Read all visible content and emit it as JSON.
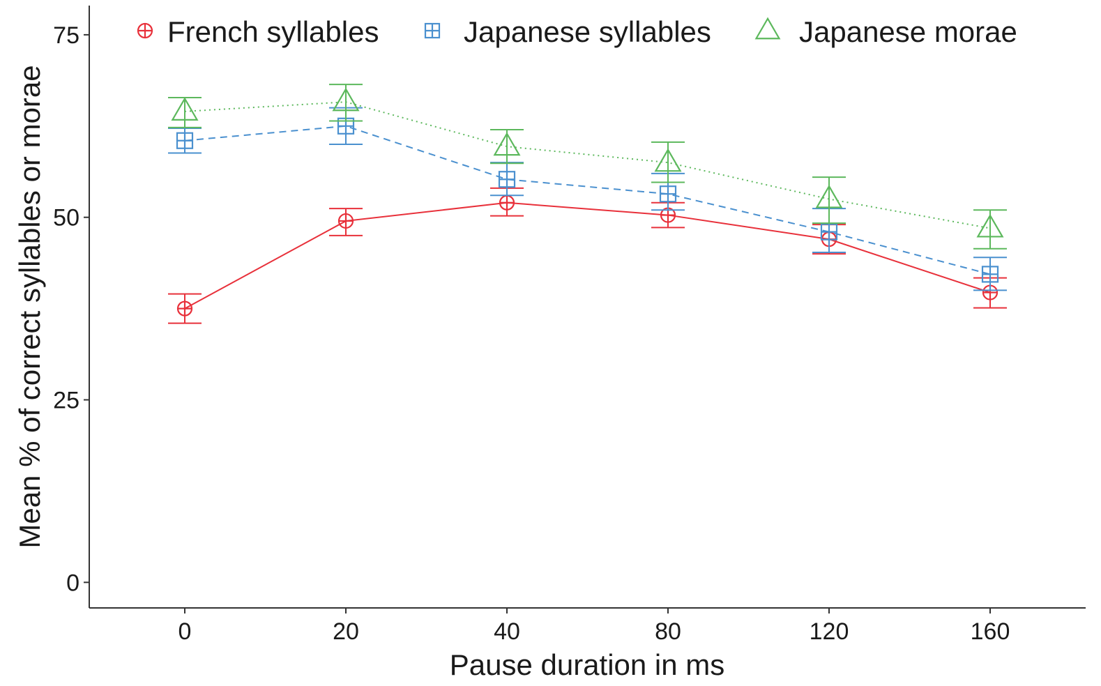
{
  "chart_data": {
    "type": "line",
    "title": "",
    "xlabel": "Pause duration in ms",
    "ylabel": "Mean % of correct syllables or morae",
    "categories": [
      "0",
      "20",
      "40",
      "80",
      "120",
      "160"
    ],
    "ylim": [
      -3.5,
      79
    ],
    "yticks": [
      0,
      25,
      50,
      75
    ],
    "grid": false,
    "legend_position": "top",
    "series": [
      {
        "name": "French syllables",
        "color": "#e8303a",
        "line_style": "solid",
        "marker": "circle-plus",
        "values": [
          37.5,
          49.5,
          52.0,
          50.3,
          47.0,
          39.7
        ],
        "error_low": [
          35.5,
          47.5,
          50.2,
          48.6,
          45.0,
          37.6
        ],
        "error_high": [
          39.5,
          51.2,
          54.0,
          52.0,
          49.0,
          41.7
        ]
      },
      {
        "name": "Japanese syllables",
        "color": "#4a90cf",
        "line_style": "dashed",
        "marker": "square-plus",
        "values": [
          60.5,
          62.5,
          55.2,
          53.2,
          48.0,
          42.2
        ],
        "error_low": [
          58.8,
          60.0,
          53.0,
          51.0,
          45.2,
          40.0
        ],
        "error_high": [
          62.2,
          65.0,
          57.5,
          56.0,
          51.2,
          44.5
        ]
      },
      {
        "name": "Japanese morae",
        "color": "#5cb85c",
        "line_style": "dotted",
        "marker": "triangle",
        "values": [
          64.5,
          65.8,
          59.7,
          57.5,
          52.5,
          48.5
        ],
        "error_low": [
          62.3,
          63.2,
          57.4,
          54.8,
          49.2,
          45.7
        ],
        "error_high": [
          66.4,
          68.2,
          62.0,
          60.3,
          55.5,
          51.0
        ]
      }
    ]
  }
}
